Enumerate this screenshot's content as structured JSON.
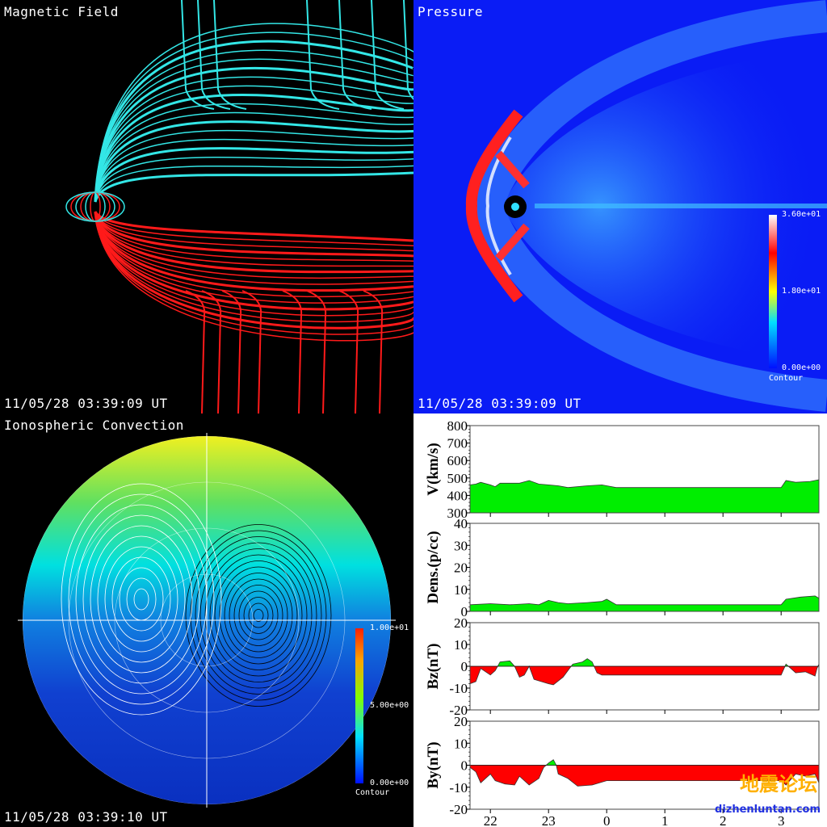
{
  "panels": {
    "magnetic": {
      "title": "Magnetic Field",
      "timestamp": "11/05/28 03:39:09 UT",
      "colors": {
        "north": "#33e6e6",
        "south": "#ff1a1a"
      }
    },
    "pressure": {
      "title": "Pressure",
      "timestamp": "11/05/28 03:39:09 UT",
      "colorbar": {
        "max": "3.60e+01",
        "mid": "1.80e+01",
        "min": "0.00e+00",
        "label": "Contour"
      }
    },
    "ionosphere": {
      "title": "Ionospheric Convection",
      "timestamp": "11/05/28 03:39:10 UT",
      "colorbar": {
        "max": "1.00e+01",
        "mid": "5.00e+00",
        "min": "0.00e+00",
        "label": "Contour"
      }
    }
  },
  "watermark": {
    "cn": "地震论坛",
    "url": "dizhenluntan.com"
  },
  "chart_data": [
    {
      "type": "area",
      "ylabel": "V(km/s)",
      "ylim": [
        300,
        800
      ],
      "yticks": [
        "300",
        "400",
        "500",
        "600",
        "700",
        "800"
      ],
      "fill_positive": "#00ee00",
      "x": [
        "21:39",
        "21:45",
        "21:50",
        "22:00",
        "22:05",
        "22:10",
        "22:30",
        "22:40",
        "22:50",
        "23:00",
        "23:10",
        "23:20",
        "23:40",
        "23:55",
        "00:00",
        "00:10",
        "03:00",
        "03:05",
        "03:15",
        "03:30",
        "03:39"
      ],
      "values": [
        460,
        465,
        475,
        460,
        450,
        470,
        470,
        485,
        465,
        460,
        455,
        445,
        455,
        460,
        455,
        445,
        445,
        485,
        475,
        480,
        490
      ]
    },
    {
      "type": "area",
      "ylabel": "Dens.(p/cc)",
      "ylim": [
        0,
        40
      ],
      "yticks": [
        "0",
        "10",
        "20",
        "30",
        "40"
      ],
      "fill_positive": "#00ee00",
      "x": [
        "21:39",
        "22:00",
        "22:20",
        "22:40",
        "22:50",
        "23:00",
        "23:10",
        "23:20",
        "23:40",
        "23:55",
        "00:00",
        "00:10",
        "03:00",
        "03:05",
        "03:20",
        "03:35",
        "03:39"
      ],
      "values": [
        3,
        3.5,
        3,
        3.5,
        3,
        5,
        4,
        3.5,
        4,
        4.5,
        5.5,
        3,
        3,
        5.5,
        6.5,
        7,
        6
      ]
    },
    {
      "type": "area",
      "ylabel": "Bz(nT)",
      "ylim": [
        -20,
        20
      ],
      "yticks": [
        "-20",
        "-10",
        "0",
        "10",
        "20"
      ],
      "fill_positive": "#00ee00",
      "fill_negative": "#ff0000",
      "x": [
        "21:39",
        "21:45",
        "21:50",
        "22:00",
        "22:05",
        "22:10",
        "22:20",
        "22:25",
        "22:30",
        "22:35",
        "22:40",
        "22:45",
        "23:00",
        "23:05",
        "23:15",
        "23:20",
        "23:25",
        "23:35",
        "23:40",
        "23:45",
        "23:50",
        "23:55",
        "03:00",
        "03:05",
        "03:10",
        "03:15",
        "03:25",
        "03:35",
        "03:37",
        "03:39"
      ],
      "values": [
        -8,
        -7,
        -1,
        -4,
        -2,
        2,
        2.5,
        0,
        -5,
        -4,
        0,
        -6,
        -8,
        -8.5,
        -5,
        -2,
        1,
        2,
        3.5,
        2,
        -3,
        -4,
        -4,
        1,
        -1,
        -3,
        -2.5,
        -4.5,
        -1,
        1
      ]
    },
    {
      "type": "area",
      "ylabel": "By(nT)",
      "ylim": [
        -20,
        20
      ],
      "yticks": [
        "-20",
        "-10",
        "0",
        "10",
        "20"
      ],
      "fill_positive": "#00ee00",
      "fill_negative": "#ff0000",
      "x": [
        "21:39",
        "21:45",
        "21:50",
        "22:00",
        "22:05",
        "22:15",
        "22:25",
        "22:30",
        "22:40",
        "22:50",
        "22:55",
        "23:00",
        "23:05",
        "23:08",
        "23:10",
        "23:20",
        "23:30",
        "23:45",
        "00:00",
        "03:00",
        "03:05",
        "03:15",
        "03:25",
        "03:35",
        "03:39"
      ],
      "values": [
        -1,
        -3,
        -8,
        -4,
        -7,
        -8.5,
        -9,
        -5,
        -9,
        -6,
        -1,
        1,
        2.5,
        0,
        -4,
        -6,
        -9.5,
        -9,
        -7,
        -7,
        -9,
        -4,
        -5,
        -4,
        -8
      ]
    }
  ],
  "xaxis": {
    "ticks": [
      "22",
      "23",
      "0",
      "1",
      "2",
      "3"
    ]
  }
}
